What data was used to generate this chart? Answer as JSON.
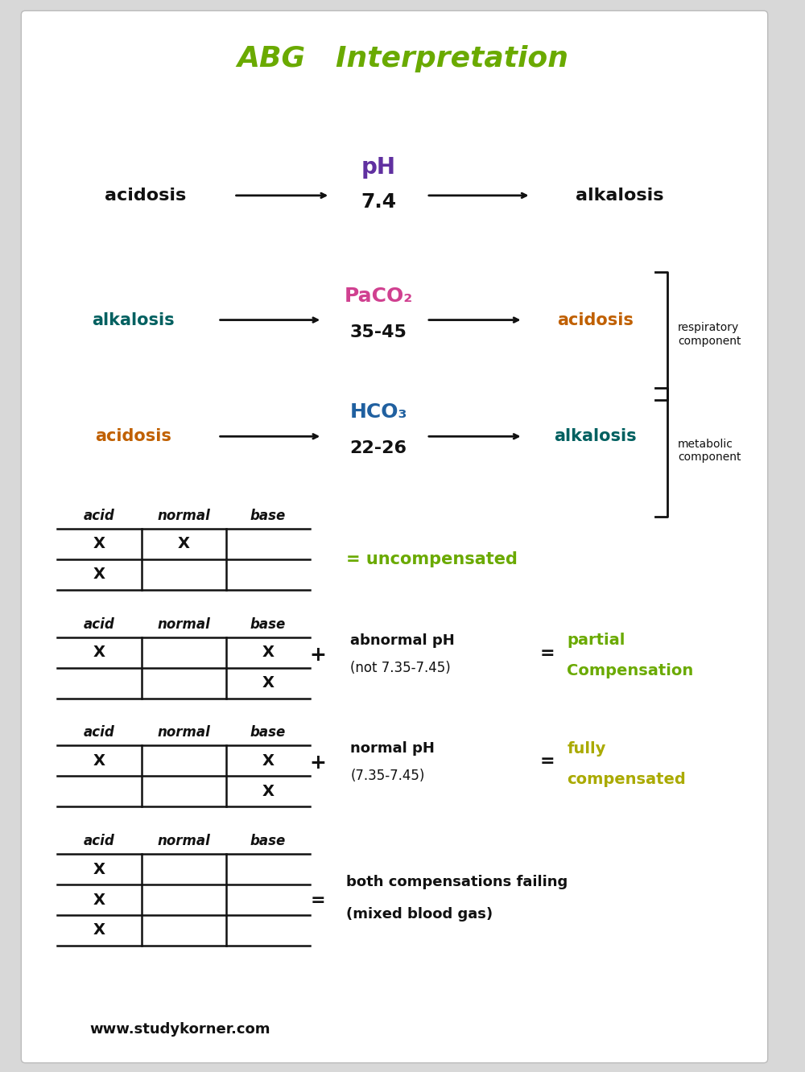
{
  "title": "ABG   Interpretation",
  "title_color": "#6aaa00",
  "bg_color": "#d8d8d8",
  "paper_color": "#ffffff",
  "website": "www.studykorner.com",
  "ph_label": "pH",
  "ph_value": "7.4",
  "ph_color": "#6030a0",
  "paco2_label": "PaCO₂",
  "paco2_value": "35-45",
  "paco2_color": "#d04090",
  "hco3_label": "HCO₃",
  "hco3_value": "22-26",
  "hco3_color": "#2060a0",
  "acidosis_color": "#c06000",
  "alkalosis_color": "#006060",
  "black_color": "#111111",
  "uncompensated_color": "#6aaa00",
  "partial_comp_color": "#6aaa00",
  "fully_comp_color": "#aaaa00",
  "mixed_color": "#111111"
}
